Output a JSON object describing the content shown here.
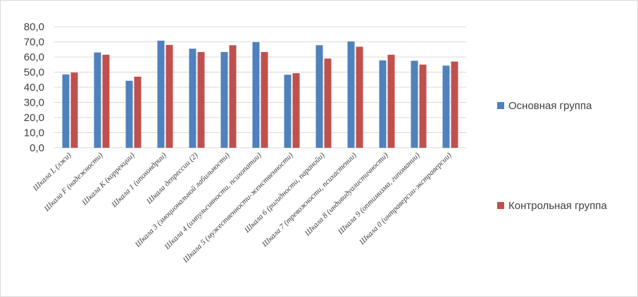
{
  "chart_data": {
    "type": "bar",
    "title": "",
    "xlabel": "",
    "ylabel": "",
    "ylim": [
      0,
      80
    ],
    "yticks": [
      "0,0",
      "10,0",
      "20,0",
      "30,0",
      "40,0",
      "50,0",
      "60,0",
      "70,0",
      "80,0"
    ],
    "grid": true,
    "legend_position": "right",
    "categories": [
      "Шкала L (лжи)",
      "Шкала F (надежности)",
      "Шкала K (коррекции)",
      "Шкала 1 (ипохондрии)",
      "Шкала депрессии (2)",
      "Шкала 3 (эмоциональной лабильности)",
      "Шкала 4 (импульсивности, психопатии)",
      "Шкала 5 (мужественности-женственности)",
      "Шкала 6 (ригидности, паранойи)",
      "Шкала 7 (тревожности, психастении)",
      "Шкала 8 (индивидуалистичности)",
      "Шкала 9 (оптимизма, гипомании)",
      "Шкала 0 (интраверсии-экстраверсии)"
    ],
    "series": [
      {
        "name": "Основная группа",
        "color": "#4f81bd",
        "values": [
          48.5,
          63.0,
          44.3,
          70.8,
          65.5,
          63.3,
          69.8,
          48.3,
          67.8,
          70.3,
          57.8,
          57.5,
          54.3
        ]
      },
      {
        "name": "Контрольная группа",
        "color": "#c0504d",
        "values": [
          49.7,
          61.5,
          47.0,
          68.0,
          63.3,
          67.8,
          63.3,
          49.3,
          59.0,
          66.8,
          61.5,
          55.0,
          57.0
        ]
      }
    ]
  }
}
